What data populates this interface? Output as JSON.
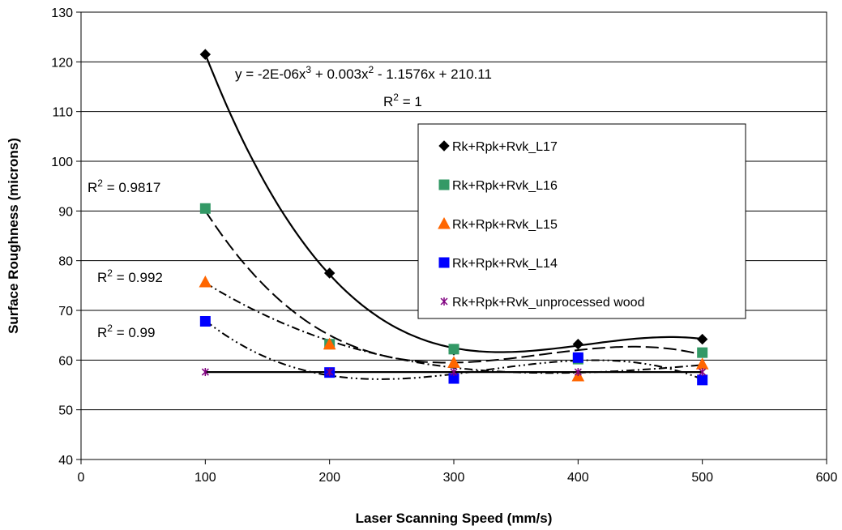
{
  "chart_data": {
    "type": "scatter",
    "xlabel": "Laser Scanning Speed (mm/s)",
    "ylabel": "Surface Roughness (microns)",
    "xlim": [
      0,
      600
    ],
    "ylim": [
      40,
      130
    ],
    "xticks": [
      0,
      100,
      200,
      300,
      400,
      500,
      600
    ],
    "yticks": [
      40,
      50,
      60,
      70,
      80,
      90,
      100,
      110,
      120,
      130
    ],
    "grid": "horizontal",
    "legend_position": "right",
    "series": [
      {
        "name": "Rk+Rpk+Rvk_L17",
        "marker": "diamond",
        "color": "#000000",
        "x": [
          100,
          200,
          300,
          400,
          500
        ],
        "y": [
          121.5,
          77.5,
          62,
          63.2,
          64.2
        ],
        "trend": "poly3",
        "trend_dash": "solid"
      },
      {
        "name": "Rk+Rpk+Rvk_L16",
        "marker": "square",
        "color": "#339966",
        "x": [
          100,
          200,
          300,
          400,
          500
        ],
        "y": [
          90.5,
          63.2,
          62.2,
          60.2,
          61.5
        ],
        "trend": "poly3",
        "trend_dash": "long-dash"
      },
      {
        "name": "Rk+Rpk+Rvk_L15",
        "marker": "triangle",
        "color": "#ff6600",
        "x": [
          100,
          200,
          300,
          400,
          500
        ],
        "y": [
          75.7,
          63.2,
          59.5,
          56.8,
          59.2
        ],
        "trend": "poly3",
        "trend_dash": "dash-dot"
      },
      {
        "name": "Rk+Rpk+Rvk_L14",
        "marker": "square",
        "color": "#0000ff",
        "x": [
          100,
          200,
          300,
          400,
          500
        ],
        "y": [
          67.8,
          57.5,
          56.3,
          60.5,
          56
        ],
        "trend": "poly3",
        "trend_dash": "dash-dot-dot"
      },
      {
        "name": "Rk+Rpk+Rvk_unprocessed wood",
        "marker": "star",
        "color": "#800080",
        "x": [
          100,
          200,
          300,
          400,
          500
        ],
        "y": [
          57.6,
          57.6,
          57.6,
          57.6,
          57.6
        ],
        "trend": "linear",
        "trend_dash": "solid"
      }
    ],
    "annotations": {
      "equation_prefix": "y = -2E-06x",
      "equation_middle": " + 0.003x",
      "equation_suffix": " - 1.1576x + 210.11",
      "exp3": "3",
      "exp2": "2",
      "r_sq_l17": " = 1",
      "r_sq_l16": " = 0.9817",
      "r_sq_l15": " = 0.992",
      "r_sq_l14": " = 0.99",
      "r_letter": "R",
      "r_exp": "2"
    }
  }
}
